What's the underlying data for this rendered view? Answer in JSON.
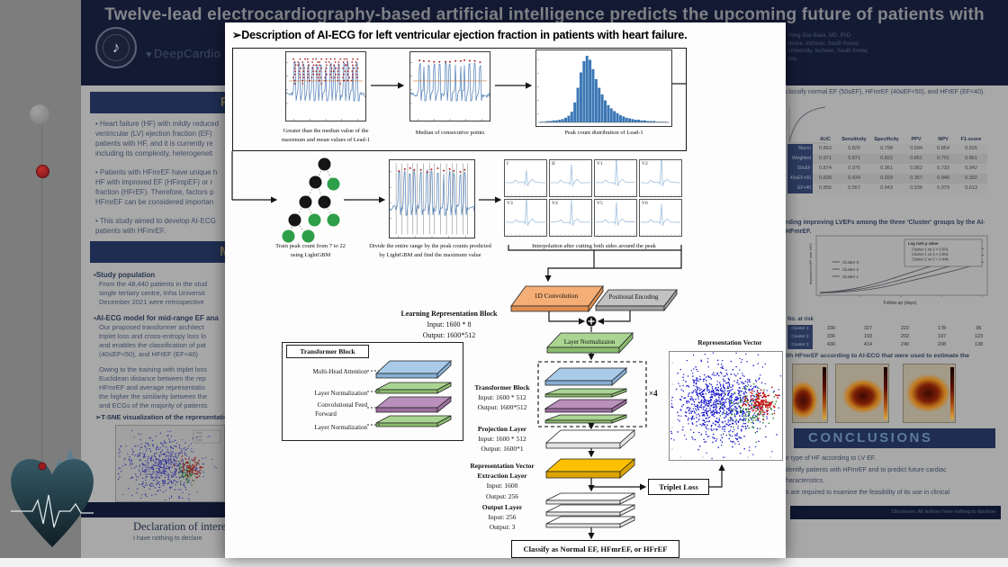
{
  "scene": {
    "desktop_color": "#7d7d7d",
    "accent_navy": "#1e2d51",
    "overlay_bg": "#fdfdfd"
  },
  "poster": {
    "header": {
      "title": "Twelve-lead electrocardiography-based artificial intelligence predicts the upcoming future of patients with",
      "brand": "DeepCardio",
      "author_lines": [
        "Yong-Soo Baek, MD, PhD",
        "dicine, Incheon, South Korea;",
        "University, Incheon, South Korea;",
        "rea."
      ]
    },
    "purpose": {
      "title": "PURPOSE",
      "bullets": [
        [
          "• Heart failure (HF) with mildly reduced",
          "ventricular (LV) ejection fraction (EF)",
          "patients with HF, and it is currently re",
          "including its complexity, heterogeneit"
        ],
        [
          "• Patients with HFmrEF have unique h",
          "HF with improved EF (HFimpEF) or r",
          "fraction (HFrEF). Therefore, factors p",
          "HFmrEF can be considered importan"
        ],
        [
          "• This study aimed to develop AI-ECG",
          "patients with HFmrEF."
        ]
      ]
    },
    "methods": {
      "title": "METHODS",
      "sub1": "▪Study population",
      "para1": [
        "From the 48,440 patients in the stud",
        "single tertiary centre, Inha Universit",
        "December 2021 were retrospective"
      ],
      "sub2": "▪AI-ECG model for mid-range EF ana",
      "para2": [
        "Our proposed transformer architect",
        "triplet loss and cross-entropy loss lo",
        "and enables the classification of pat",
        "(40≤EF<50), and HFrEF (EF<40)"
      ],
      "para3": [
        "Owing to the training with triplet loss",
        "Euclidean distance between the rep",
        "HFmrEF and average representatio",
        "the higher the similarity between the",
        "and ECGs of the majority of patients"
      ],
      "tsne_caption": "➢T-SNE visualization of the representation v"
    },
    "declaration": {
      "title": "Declaration of interest:",
      "body": "I have nothing to declare"
    },
    "results_right": {
      "top_line": "classify normal EF (50≤EF), HFmrEF (40≤EF<50), and  HFrEF (EF<40).",
      "metrics_table": {
        "columns": [
          "AUC",
          "Sensitivity",
          "Specificity",
          "PPV",
          "NPV",
          "F1-score"
        ],
        "rows": [
          {
            "label": "Macro",
            "values": [
              "0.863",
              "0.825",
              "0.798",
              "0.594",
              "0.854",
              "0.826"
            ]
          },
          {
            "label": "Weighted",
            "values": [
              "0.871",
              "0.871",
              "0.822",
              "0.851",
              "0.701",
              "0.861"
            ]
          },
          {
            "label": "50≤EF",
            "values": [
              "0.874",
              "0.975",
              "0.361",
              "0.952",
              "0.733",
              "0.942"
            ]
          },
          {
            "label": "40≤EF<50",
            "values": [
              "0.828",
              "0.434",
              "0.929",
              "0.357",
              "0.948",
              "0.392"
            ]
          },
          {
            "label": "EF<40",
            "values": [
              "0.856",
              "0.557",
              "0.943",
              "0.536",
              "0.979",
              "0.613"
            ]
          }
        ]
      },
      "cluster_heading": [
        "rding improving LVEFs among the three 'Cluster' groups by the AI-",
        "HFmrEF."
      ],
      "cluster_plot": {
        "legend_title": "Log rank p value",
        "legend_entries": [
          "Cluster 1 vs 2 < 0.001",
          "Cluster 1 vs 3 < 0.001",
          "Cluster 2 vs 3 = 0.446"
        ],
        "series_labels": [
          "Cluster 3",
          "Cluster 2",
          "Cluster 1"
        ],
        "xlabel": "Follow-up (days)",
        "ylabel": "Improved LVEF over 50%",
        "no_at_risk": "No. at risk"
      },
      "risk_table": {
        "rows": [
          {
            "label": "Cluster 1",
            "values": [
              "330",
              "327",
              "222",
              "178",
              "96"
            ]
          },
          {
            "label": "Cluster 2",
            "values": [
              "336",
              "193",
              "202",
              "197",
              "123"
            ]
          },
          {
            "label": "Cluster 3",
            "values": [
              "430",
              "414",
              "240",
              "208",
              "138"
            ]
          }
        ]
      },
      "estimate_line": "ith HFmrEF according to AI-ECG that were used to estimate the",
      "conclusions": {
        "title": "CONCLUSIONS",
        "lines": [
          "e type of HF according to LV EF.",
          "dentify patients with HFmrEF and to predict future cardiac",
          "haracteristics.",
          "s are required to examine the feasibility of its use in clinical"
        ]
      },
      "disclosure": "Disclosure: All authors have nothing to disclose"
    }
  },
  "overlay": {
    "heading": "➢Description of AI-ECG for left ventricular ejection fraction in patients with heart failure.",
    "captions": {
      "panel1": [
        "Greater than the median value of the",
        "maximum and mean values of Lead-1"
      ],
      "panel2": "Median of consecutive points",
      "panel3": "Peak count distribution of Lead-1",
      "tree": [
        "Train peak count from 7 to 22",
        "using LightGBM"
      ],
      "divide": [
        "Divide the entire range by the peak counts predicted",
        "by LightGBM and find the maximum value"
      ],
      "leads": "Interpolation after cutting both sides around the peak"
    },
    "blocks": {
      "conv": "1D Convolution",
      "pos": "Positional Encoding",
      "lnorm": "Layer Normalizaion",
      "learning": [
        "Learning Representation Block",
        "Input: 1600 * 8",
        "Output: 1600*512"
      ],
      "tblock_box_title": "Transformer Block",
      "tblock_layers": [
        "Multi-Head Attention",
        "Layer Normalization",
        "Convolutional Feed",
        "Forward",
        "Layer Normalization"
      ],
      "tblock_text": [
        "Transformer Block",
        "Input: 1600 * 512",
        "Output: 1600*512"
      ],
      "x4": "×4",
      "projection": [
        "Projection Layer",
        "Input: 1600 * 512",
        "Output: 1600*1"
      ],
      "repvec_extract": [
        "Representation Vector",
        "Extraction Layer",
        "Input: 1600",
        "Output: 256"
      ],
      "output": [
        "Output Layer",
        "Input: 256",
        "Output: 3"
      ],
      "triplet": "Triplet Loss",
      "classify": "Classify as Normal EF, HFmrEF, or HFrEF",
      "repvec_title": "Representation Vector"
    },
    "figure": {
      "histogram_values": [
        1,
        1,
        2,
        2,
        3,
        3,
        4,
        5,
        7,
        10,
        16,
        30,
        52,
        75,
        92,
        100,
        94,
        80,
        65,
        52,
        42,
        33,
        26,
        21,
        17,
        14,
        11,
        9,
        7,
        6,
        5,
        4,
        4,
        3,
        3,
        2,
        2,
        2,
        1,
        1,
        1,
        1
      ],
      "leads": [
        {
          "label": "I",
          "amp": 0.35
        },
        {
          "label": "II",
          "amp": 0.5
        },
        {
          "label": "V1",
          "amp": 0.72
        },
        {
          "label": "V2",
          "amp": 0.82
        },
        {
          "label": "V3",
          "amp": 0.75
        },
        {
          "label": "V4",
          "amp": 0.65
        },
        {
          "label": "V5",
          "amp": 0.55
        },
        {
          "label": "V6",
          "amp": 0.5
        }
      ],
      "tree_nodes": [
        [
          55.5,
          12.5,
          "k"
        ],
        [
          45.5,
          32.5,
          "k"
        ],
        [
          65.5,
          34.5,
          "g"
        ],
        [
          34.5,
          54.5,
          "k"
        ],
        [
          55.5,
          54.5,
          "k"
        ],
        [
          22.5,
          74.5,
          "k"
        ],
        [
          44.5,
          74.5,
          "g"
        ],
        [
          65.5,
          74.5,
          "g"
        ],
        [
          15.5,
          92.5,
          "g"
        ],
        [
          37.5,
          92.5,
          "g"
        ]
      ],
      "tree_edges": [
        [
          0,
          1
        ],
        [
          0,
          2
        ],
        [
          1,
          3
        ],
        [
          1,
          4
        ],
        [
          3,
          5
        ],
        [
          3,
          6
        ],
        [
          4,
          7
        ],
        [
          5,
          8
        ],
        [
          5,
          9
        ]
      ],
      "colors": {
        "ecg": "#4a7ab5",
        "peak_dot": "#a82424",
        "median_line": "#c87838",
        "bar": "#3b77b5",
        "scatter_blue": "#1a1ace",
        "scatter_green": "#1d7a24",
        "scatter_red": "#c31515",
        "slab_orange": "#f5ae76",
        "slab_gray": "#c2c2c2",
        "slab_green": "#aad492",
        "slab_blue": "#a9cbe9",
        "slab_purple": "#b98fbc",
        "slab_yellow": "#fdc102",
        "tree_green": "#2f9e49",
        "tree_black": "#151515"
      }
    }
  }
}
